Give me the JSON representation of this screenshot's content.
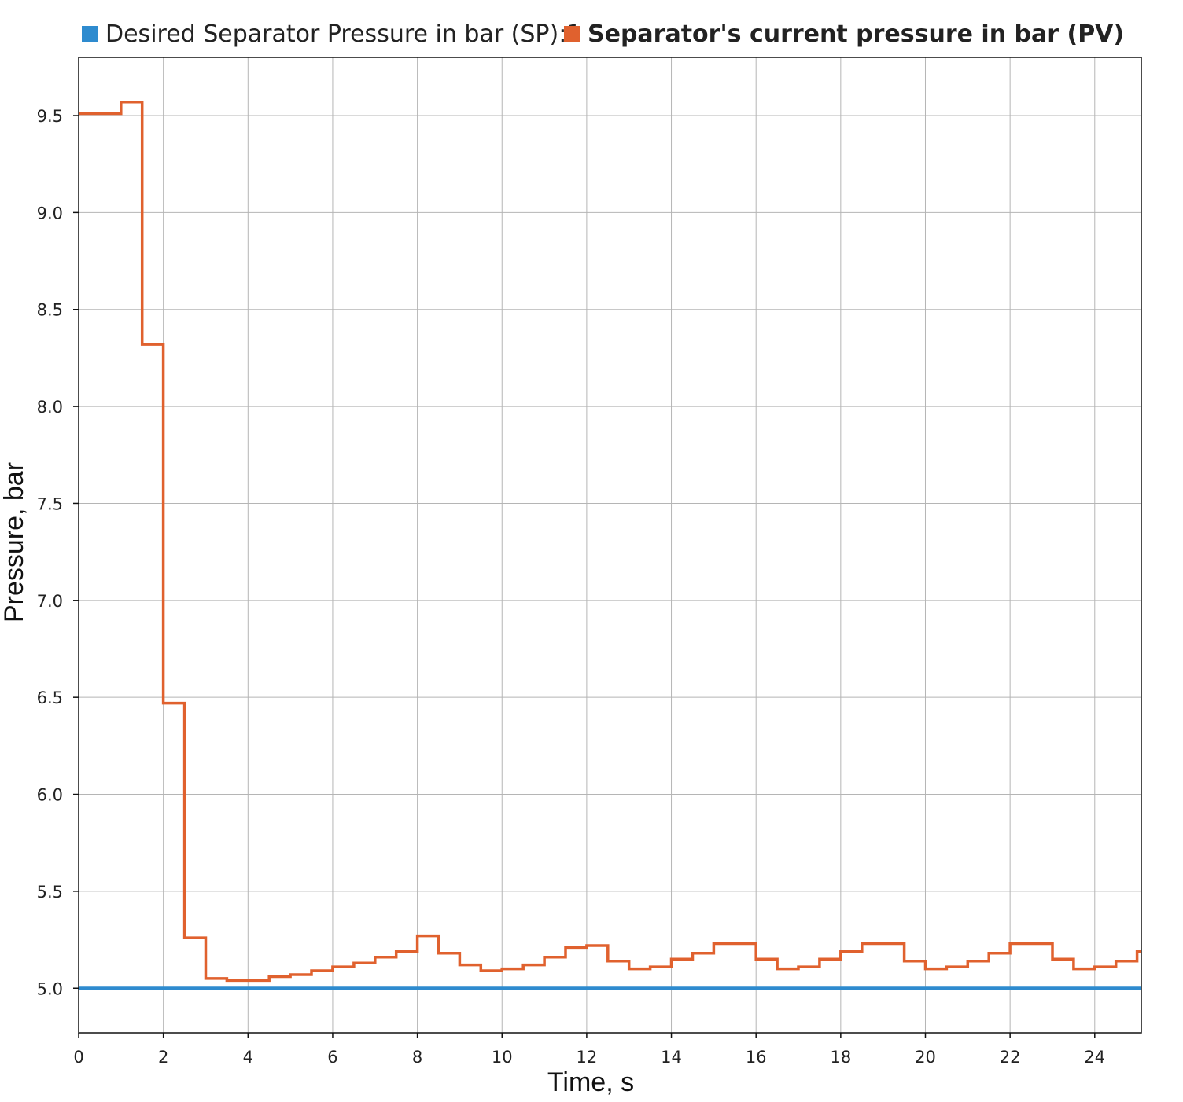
{
  "chart_data": {
    "type": "line",
    "step": true,
    "xlabel": "Time, s",
    "ylabel": "Pressure, bar",
    "xlim": [
      0,
      25.1
    ],
    "ylim": [
      4.77,
      9.8
    ],
    "x_ticks": [
      0,
      2,
      4,
      6,
      8,
      10,
      12,
      14,
      16,
      18,
      20,
      22,
      24
    ],
    "y_ticks": [
      5.0,
      5.5,
      6.0,
      6.5,
      7.0,
      7.5,
      8.0,
      8.5,
      9.0,
      9.5
    ],
    "y_tick_labels": [
      "5.0",
      "5.5",
      "6.0",
      "6.5",
      "7.0",
      "7.5",
      "8.0",
      "8.5",
      "9.0",
      "9.5"
    ],
    "grid": true,
    "legend_position": "top",
    "series": [
      {
        "name": "Desired Separator Pressure in bar (SP):1",
        "color": "#2e8bcf",
        "x": [
          0,
          25.1
        ],
        "y": [
          5.0,
          5.0
        ]
      },
      {
        "name": "Separator's current pressure in bar (PV)",
        "color": "#e0612e",
        "x": [
          0,
          1.0,
          1.5,
          2.0,
          2.5,
          3.0,
          3.5,
          4.5,
          5.0,
          5.5,
          6.0,
          6.5,
          7.0,
          7.5,
          8.0,
          8.5,
          9.0,
          9.5,
          10.0,
          10.5,
          11.0,
          11.5,
          12.0,
          12.5,
          13.0,
          13.5,
          14.0,
          14.5,
          15.0,
          15.5,
          16.0,
          16.5,
          17.0,
          17.5,
          18.0,
          18.5,
          19.0,
          19.5,
          20.0,
          20.5,
          21.0,
          21.5,
          22.0,
          22.5,
          23.0,
          23.5,
          24.0,
          24.5,
          25.0
        ],
        "y": [
          9.51,
          9.57,
          8.32,
          6.47,
          5.26,
          5.05,
          5.04,
          5.06,
          5.07,
          5.09,
          5.11,
          5.13,
          5.16,
          5.19,
          5.27,
          5.18,
          5.12,
          5.09,
          5.1,
          5.12,
          5.16,
          5.21,
          5.22,
          5.14,
          5.1,
          5.11,
          5.15,
          5.18,
          5.23,
          5.23,
          5.15,
          5.1,
          5.11,
          5.15,
          5.19,
          5.23,
          5.23,
          5.14,
          5.1,
          5.11,
          5.14,
          5.18,
          5.23,
          5.23,
          5.15,
          5.1,
          5.11,
          5.14,
          5.19
        ]
      }
    ]
  }
}
